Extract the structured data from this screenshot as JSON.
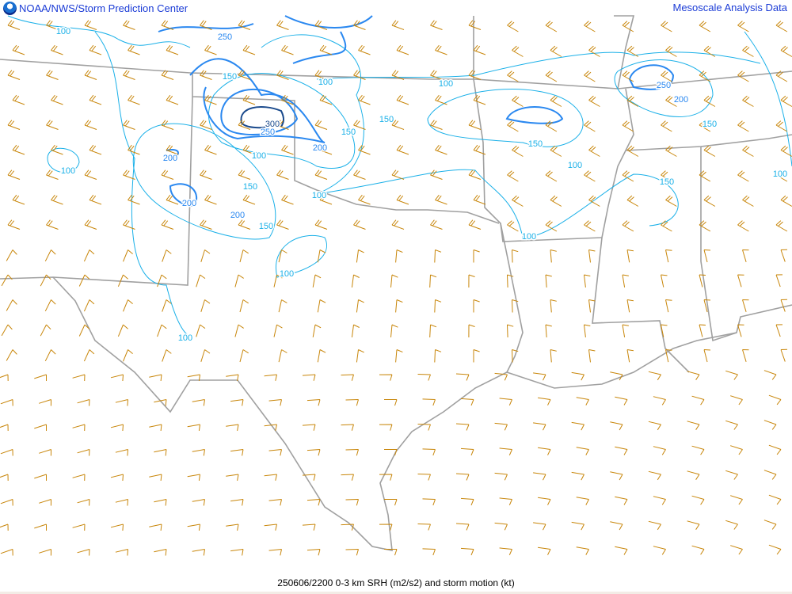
{
  "header": {
    "left_title": "NOAA/NWS/Storm Prediction Center",
    "right_title": "Mesoscale Analysis Data",
    "logo": "noaa-logo"
  },
  "footer": {
    "caption": "250606/2200 0-3 km SRH (m2/s2) and storm motion (kt)"
  },
  "colors": {
    "border": "#a0a0a0",
    "barb": "#c8860a",
    "contour_low": "#1ab0e8",
    "contour_mid": "#2a88f0",
    "contour_high": "#1a4a8c",
    "header_text": "#1a3bd6"
  },
  "contour_labels": [
    {
      "text": "100"
    },
    {
      "text": "250"
    },
    {
      "text": "150"
    },
    {
      "text": "100"
    },
    {
      "text": "100"
    },
    {
      "text": "300"
    },
    {
      "text": "250"
    },
    {
      "text": "200"
    },
    {
      "text": "150"
    },
    {
      "text": "150"
    },
    {
      "text": "200"
    },
    {
      "text": "150"
    },
    {
      "text": "100"
    },
    {
      "text": "250"
    },
    {
      "text": "200"
    },
    {
      "text": "150"
    },
    {
      "text": "100"
    },
    {
      "text": "100"
    },
    {
      "text": "200"
    },
    {
      "text": "100"
    },
    {
      "text": "150"
    },
    {
      "text": "200"
    },
    {
      "text": "150"
    },
    {
      "text": "100"
    },
    {
      "text": "100"
    },
    {
      "text": "100"
    },
    {
      "text": "150"
    },
    {
      "text": "100"
    }
  ]
}
